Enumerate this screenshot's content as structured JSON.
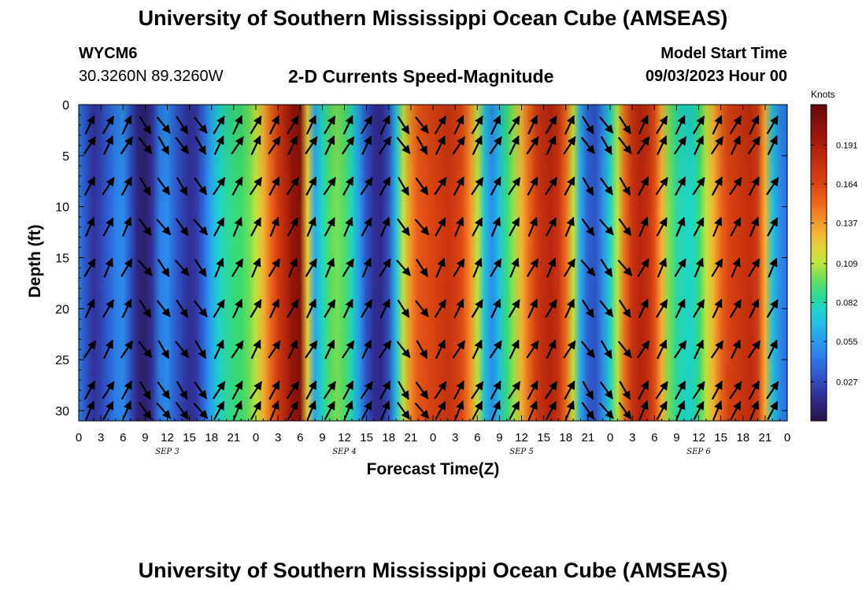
{
  "header": {
    "title": "University of Southern Mississippi Ocean Cube (AMSEAS)",
    "station_id": "WYCM6",
    "station_coords": "30.3260N  89.3260W",
    "subtitle": "2-D Currents Speed-Magnitude",
    "model_start_label": "Model Start Time",
    "model_start_value": "09/03/2023 Hour 00"
  },
  "footer": {
    "title": "University of Southern Mississippi Ocean Cube (AMSEAS)"
  },
  "chart_data": {
    "type": "heatmap",
    "title": "2-D Currents Speed-Magnitude",
    "xlabel": "Forecast Time(Z)",
    "ylabel": "Depth (ft)",
    "x_tick_labels": [
      "0",
      "3",
      "6",
      "9",
      "12",
      "15",
      "18",
      "21",
      "0",
      "3",
      "6",
      "9",
      "12",
      "15",
      "18",
      "21",
      "0",
      "3",
      "6",
      "9",
      "12",
      "15",
      "18",
      "21",
      "0",
      "3",
      "6",
      "9",
      "12",
      "15",
      "18",
      "21",
      "0"
    ],
    "date_labels": [
      {
        "label": "SEP 3",
        "hour": 12
      },
      {
        "label": "SEP 4",
        "hour": 36
      },
      {
        "label": "SEP 5",
        "hour": 60
      },
      {
        "label": "SEP 6",
        "hour": 84
      }
    ],
    "xlim_hours": [
      0,
      96
    ],
    "y_ticks": [
      0,
      5,
      10,
      15,
      20,
      25,
      30
    ],
    "ylim_ft": [
      0,
      31
    ],
    "colorbar": {
      "label": "Knots",
      "min": 0.0,
      "max": 0.219,
      "tick_values": [
        0.027,
        0.055,
        0.082,
        0.109,
        0.137,
        0.164,
        0.191
      ],
      "tick_labels": [
        "0.027",
        "0.055",
        "0.082",
        "0.109",
        "0.137",
        "0.164",
        "0.191"
      ]
    },
    "speed_profile": {
      "description": "approximate current speed (knots) by forecast hour, nearly uniform with depth",
      "hours": [
        0,
        1,
        2,
        3,
        4,
        5,
        6,
        7,
        8,
        9,
        10,
        11,
        12,
        13,
        14,
        15,
        16,
        17,
        18,
        19,
        20,
        21,
        22,
        23,
        24,
        25,
        26,
        27,
        28,
        29,
        30,
        31,
        32,
        33,
        34,
        35,
        36,
        37,
        38,
        39,
        40,
        41,
        42,
        43,
        44,
        45,
        46,
        47,
        48,
        49,
        50,
        51,
        52,
        53,
        54,
        55,
        56,
        57,
        58,
        59,
        60,
        61,
        62,
        63,
        64,
        65,
        66,
        67,
        68,
        69,
        70,
        71,
        72,
        73,
        74,
        75,
        76,
        77,
        78,
        79,
        80,
        81,
        82,
        83,
        84,
        85,
        86,
        87,
        88,
        89,
        90,
        91,
        92,
        93,
        94,
        95,
        96
      ],
      "speed_knots": [
        0.045,
        0.03,
        0.02,
        0.025,
        0.035,
        0.045,
        0.05,
        0.03,
        0.012,
        0.008,
        0.02,
        0.045,
        0.05,
        0.035,
        0.025,
        0.018,
        0.022,
        0.04,
        0.06,
        0.078,
        0.085,
        0.09,
        0.092,
        0.098,
        0.11,
        0.13,
        0.15,
        0.17,
        0.185,
        0.2,
        0.205,
        0.12,
        0.06,
        0.08,
        0.095,
        0.1,
        0.095,
        0.08,
        0.055,
        0.03,
        0.018,
        0.015,
        0.03,
        0.07,
        0.11,
        0.14,
        0.155,
        0.16,
        0.165,
        0.17,
        0.175,
        0.17,
        0.16,
        0.14,
        0.11,
        0.07,
        0.05,
        0.07,
        0.09,
        0.105,
        0.13,
        0.15,
        0.17,
        0.18,
        0.185,
        0.175,
        0.15,
        0.11,
        0.06,
        0.035,
        0.03,
        0.05,
        0.08,
        0.11,
        0.15,
        0.175,
        0.185,
        0.18,
        0.16,
        0.13,
        0.1,
        0.085,
        0.08,
        0.078,
        0.09,
        0.11,
        0.13,
        0.15,
        0.165,
        0.17,
        0.175,
        0.18,
        0.17,
        0.13,
        0.07,
        0.05,
        0.04
      ]
    },
    "vectors": {
      "depth_levels_ft": [
        2,
        4,
        8,
        12,
        16,
        20,
        24,
        28,
        30
      ],
      "hour_spacing": 2.5,
      "direction_by_segment": [
        {
          "from_hour": 0,
          "to_hour": 9,
          "direction": "north-northeast"
        },
        {
          "from_hour": 9,
          "to_hour": 18,
          "direction": "south-southeast"
        },
        {
          "from_hour": 18,
          "to_hour": 42,
          "direction": "north-northeast"
        },
        {
          "from_hour": 42,
          "to_hour": 48,
          "direction": "south-southeast"
        },
        {
          "from_hour": 48,
          "to_hour": 69,
          "direction": "north-northeast"
        },
        {
          "from_hour": 69,
          "to_hour": 75,
          "direction": "south-southeast"
        },
        {
          "from_hour": 75,
          "to_hour": 96,
          "direction": "north-northeast"
        }
      ]
    }
  }
}
